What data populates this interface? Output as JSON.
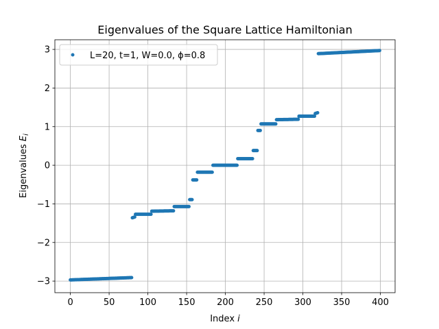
{
  "chart_data": {
    "type": "scatter",
    "title": "Eigenvalues of the Square Lattice Hamiltonian",
    "xlabel_main": "Index ",
    "xlabel_var": "i",
    "ylabel_main": "Eigenvalues ",
    "ylabel_var": "E",
    "ylabel_sub": "i",
    "xlim": [
      -20,
      419
    ],
    "ylim": [
      -3.3,
      3.25
    ],
    "xticks": [
      0,
      50,
      100,
      150,
      200,
      250,
      300,
      350,
      400
    ],
    "xtick_labels": [
      "0",
      "50",
      "100",
      "150",
      "200",
      "250",
      "300",
      "350",
      "400"
    ],
    "yticks": [
      -3,
      -2,
      -1,
      0,
      1,
      2,
      3
    ],
    "ytick_labels": [
      "−3",
      "−2",
      "−1",
      "0",
      "1",
      "2",
      "3"
    ],
    "grid": true,
    "legend_placement": "upper-left",
    "legend_label": "L=20, t=1, W=0.0, ϕ=0.8",
    "series_color": "#1f77b4",
    "series": [
      {
        "name": "L=20, t=1, W=0.0, ϕ=0.8",
        "segments": [
          {
            "start": 0,
            "end": 79,
            "y0": -2.97,
            "y1": -2.91
          },
          {
            "start": 80,
            "end": 83,
            "y0": -1.36,
            "y1": -1.34
          },
          {
            "start": 84,
            "end": 104,
            "y0": -1.27,
            "y1": -1.27
          },
          {
            "start": 105,
            "end": 133,
            "y0": -1.19,
            "y1": -1.18
          },
          {
            "start": 134,
            "end": 153,
            "y0": -1.07,
            "y1": -1.07
          },
          {
            "start": 154,
            "end": 157,
            "y0": -0.89,
            "y1": -0.89
          },
          {
            "start": 158,
            "end": 163,
            "y0": -0.38,
            "y1": -0.38
          },
          {
            "start": 164,
            "end": 183,
            "y0": -0.18,
            "y1": -0.18
          },
          {
            "start": 184,
            "end": 215,
            "y0": 0.0,
            "y1": 0.0
          },
          {
            "start": 216,
            "end": 235,
            "y0": 0.17,
            "y1": 0.17
          },
          {
            "start": 236,
            "end": 241,
            "y0": 0.38,
            "y1": 0.38
          },
          {
            "start": 242,
            "end": 245,
            "y0": 0.9,
            "y1": 0.9
          },
          {
            "start": 246,
            "end": 265,
            "y0": 1.07,
            "y1": 1.07
          },
          {
            "start": 266,
            "end": 294,
            "y0": 1.18,
            "y1": 1.19
          },
          {
            "start": 295,
            "end": 315,
            "y0": 1.27,
            "y1": 1.27
          },
          {
            "start": 316,
            "end": 319,
            "y0": 1.34,
            "y1": 1.36
          },
          {
            "start": 320,
            "end": 399,
            "y0": 2.89,
            "y1": 2.97
          }
        ]
      }
    ]
  }
}
